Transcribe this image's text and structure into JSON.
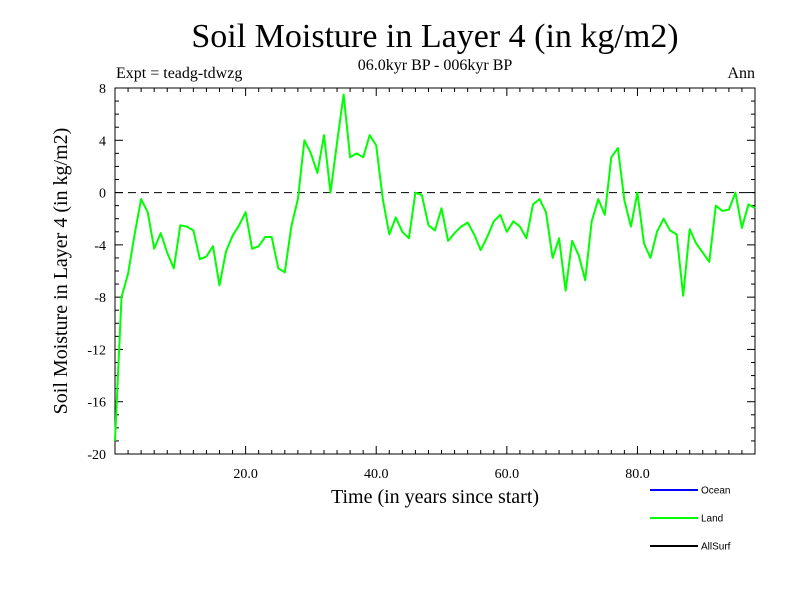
{
  "chart_data": {
    "type": "line",
    "title": "Soil Moisture in Layer 4 (in kg/m2)",
    "subtitle": "06.0kyr BP - 006kyr BP",
    "expt_label": "Expt = teadg-tdwzg",
    "period_label": "Ann",
    "xlabel": "Time (in years since start)",
    "ylabel": "Soil Moisture in Layer 4 (in kg/m2)",
    "xlim": [
      0,
      98
    ],
    "ylim": [
      -20,
      8
    ],
    "x_ticks": [
      20,
      40,
      60,
      80
    ],
    "x_tick_labels": [
      "20.0",
      "40.0",
      "60.0",
      "80.0"
    ],
    "y_ticks": [
      -20,
      -16,
      -12,
      -8,
      -4,
      0,
      4,
      8
    ],
    "y_tick_labels": [
      "-20",
      "-16",
      "-12",
      "-8",
      "-4",
      "0",
      "4",
      "8"
    ],
    "zero_line": 0,
    "legend": [
      {
        "name": "Ocean",
        "color": "#0000ff"
      },
      {
        "name": "Land",
        "color": "#00ff00"
      },
      {
        "name": "AllSurf",
        "color": "#000000"
      }
    ],
    "series": [
      {
        "name": "Land",
        "color": "#00ff00",
        "x": [
          0,
          1,
          2,
          3,
          4,
          5,
          6,
          7,
          8,
          9,
          10,
          11,
          12,
          13,
          14,
          15,
          16,
          17,
          18,
          19,
          20,
          21,
          22,
          23,
          24,
          25,
          26,
          27,
          28,
          29,
          30,
          31,
          32,
          33,
          34,
          35,
          36,
          37,
          38,
          39,
          40,
          41,
          42,
          43,
          44,
          45,
          46,
          47,
          48,
          49,
          50,
          51,
          52,
          53,
          54,
          55,
          56,
          57,
          58,
          59,
          60,
          61,
          62,
          63,
          64,
          65,
          66,
          67,
          68,
          69,
          70,
          71,
          72,
          73,
          74,
          75,
          76,
          77,
          78,
          79,
          80,
          81,
          82,
          83,
          84,
          85,
          86,
          87,
          88,
          89,
          90,
          91,
          92,
          93,
          94,
          95,
          96,
          97,
          98
        ],
        "values": [
          -19,
          -8,
          -6.2,
          -3.2,
          -0.5,
          -1.5,
          -4.3,
          -3.1,
          -4.6,
          -5.8,
          -2.5,
          -2.6,
          -2.9,
          -5.1,
          -4.9,
          -4.1,
          -7.1,
          -4.5,
          -3.3,
          -2.5,
          -1.5,
          -4.3,
          -4.1,
          -3.4,
          -3.4,
          -5.8,
          -6.1,
          -2.6,
          -0.5,
          4,
          3,
          1.5,
          4.4,
          0,
          3.8,
          7.5,
          2.7,
          3,
          2.7,
          4.4,
          3.6,
          -0.5,
          -3.2,
          -1.9,
          -3,
          -3.5,
          0,
          -0.2,
          -2.5,
          -2.9,
          -1.2,
          -3.7,
          -3.1,
          -2.6,
          -2.3,
          -3.2,
          -4.4,
          -3.4,
          -2.2,
          -1.7,
          -3,
          -2.2,
          -2.6,
          -3.5,
          -0.9,
          -0.5,
          -1.5,
          -5,
          -3.5,
          -7.5,
          -3.7,
          -4.8,
          -6.7,
          -2.2,
          -0.5,
          -1.7,
          2.7,
          3.4,
          -0.6,
          -2.6,
          0,
          -3.9,
          -5,
          -3,
          -2,
          -2.9,
          -3.2,
          -7.9,
          -2.8,
          -3.9,
          -4.6,
          -5.3,
          -1,
          -1.4,
          -1.3,
          0,
          -2.7,
          -0.9,
          -1.2
        ]
      }
    ]
  }
}
